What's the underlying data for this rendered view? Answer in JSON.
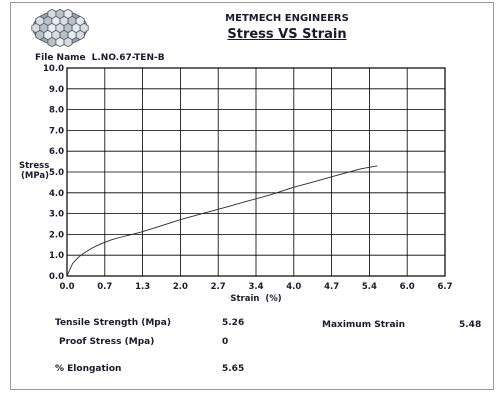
{
  "header": {
    "company": "METMECH ENGINEERS",
    "title": "Stress VS Strain",
    "file_label": "File Name",
    "file_name": "L.NO.67-TEN-B"
  },
  "logo": {
    "icon": "metal-mesh-logo-icon"
  },
  "results": {
    "tensile_strength_label": "Tensile Strength (Mpa)",
    "tensile_strength_value": "5.26",
    "maximum_strain_label": "Maximum Strain",
    "maximum_strain_value": "5.48",
    "proof_stress_label": "Proof Stress (Mpa)",
    "proof_stress_value": "0",
    "elongation_label": "% Elongation",
    "elongation_value": "5.65"
  },
  "chart_data": {
    "type": "line",
    "title": "Stress VS Strain",
    "xlabel": "Strain  (%)",
    "ylabel": "Stress (MPa)",
    "xlim": [
      0,
      6.7
    ],
    "ylim": [
      0,
      10
    ],
    "x_ticks": [
      "0.0",
      "0.7",
      "1.3",
      "2.0",
      "2.7",
      "3.4",
      "4.0",
      "4.7",
      "5.4",
      "6.0",
      "6.7"
    ],
    "y_ticks": [
      "0.0",
      "1.0",
      "2.0",
      "3.0",
      "4.0",
      "5.0",
      "6.0",
      "7.0",
      "8.0",
      "9.0",
      "10.0"
    ],
    "grid": true,
    "line_color": "#2a2a2a",
    "series": [
      {
        "x": [
          0,
          0.05,
          0.1,
          0.2,
          0.3,
          0.45,
          0.6,
          0.8,
          1.0,
          1.3,
          1.6,
          2.0,
          2.4,
          2.8,
          3.2,
          3.6,
          4.0,
          4.4,
          4.8,
          5.2,
          5.5
        ],
        "y": [
          0,
          0.3,
          0.6,
          0.9,
          1.1,
          1.35,
          1.55,
          1.75,
          1.9,
          2.1,
          2.35,
          2.7,
          3.0,
          3.3,
          3.6,
          3.9,
          4.25,
          4.55,
          4.85,
          5.15,
          5.3
        ]
      }
    ]
  }
}
